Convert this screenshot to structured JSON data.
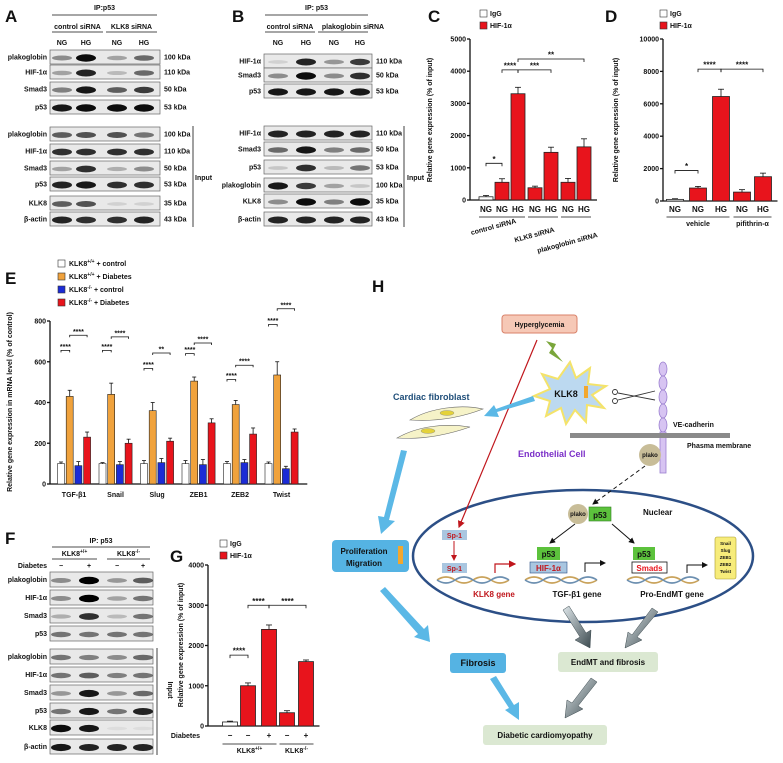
{
  "panels": {
    "A": {
      "label": "A",
      "ip_label": "IP:p53",
      "groups": [
        "control siRNA",
        "KLK8 siRNA"
      ],
      "conditions": [
        "NG",
        "HG",
        "NG",
        "HG"
      ],
      "input_label": "Input",
      "ip_blots": [
        {
          "name": "plakoglobin",
          "kda": "100 kDa",
          "bands": [
            0.4,
            0.95,
            0.3,
            0.55
          ]
        },
        {
          "name": "HIF-1α",
          "kda": "110 kDa",
          "bands": [
            0.3,
            0.85,
            0.2,
            0.55
          ]
        },
        {
          "name": "Smad3",
          "kda": "50 kDa",
          "bands": [
            0.45,
            0.9,
            0.6,
            0.75
          ]
        },
        {
          "name": "p53",
          "kda": "53 kDa",
          "bands": [
            0.9,
            0.95,
            0.95,
            0.95
          ]
        }
      ],
      "input_blots": [
        {
          "name": "plakoglobin",
          "kda": "100 kDa",
          "bands": [
            0.6,
            0.65,
            0.65,
            0.5
          ]
        },
        {
          "name": "HIF-1α",
          "kda": "110 kDa",
          "bands": [
            0.8,
            0.8,
            0.8,
            0.8
          ]
        },
        {
          "name": "Smad3",
          "kda": "50 kDa",
          "bands": [
            0.3,
            0.8,
            0.25,
            0.4
          ]
        },
        {
          "name": "p53",
          "kda": "53 kDa",
          "bands": [
            0.85,
            0.9,
            0.8,
            0.8
          ]
        },
        {
          "name": "KLK8",
          "kda": "35 kDa",
          "bands": [
            0.6,
            0.65,
            0.1,
            0.1
          ]
        },
        {
          "name": "β-actin",
          "kda": "43 kDa",
          "bands": [
            0.85,
            0.8,
            0.8,
            0.85
          ]
        }
      ]
    },
    "B": {
      "label": "B",
      "ip_label": "IP: p53",
      "groups": [
        "control siRNA",
        "plakoglobin siRNA"
      ],
      "conditions": [
        "NG",
        "HG",
        "NG",
        "HG"
      ],
      "input_label": "Input",
      "ip_blots": [
        {
          "name": "HIF-1α",
          "kda": "110 kDa",
          "bands": [
            0.1,
            0.85,
            0.35,
            0.75
          ]
        },
        {
          "name": "Smad3",
          "kda": "50 kDa",
          "bands": [
            0.4,
            0.95,
            0.4,
            0.8
          ]
        },
        {
          "name": "p53",
          "kda": "53 kDa",
          "bands": [
            0.9,
            0.9,
            0.9,
            0.9
          ]
        }
      ],
      "input_blots": [
        {
          "name": "HIF-1α",
          "kda": "110 kDa",
          "bands": [
            0.85,
            0.85,
            0.85,
            0.85
          ]
        },
        {
          "name": "Smad3",
          "kda": "50 kDa",
          "bands": [
            0.55,
            0.9,
            0.45,
            0.55
          ]
        },
        {
          "name": "p53",
          "kda": "53 kDa",
          "bands": [
            0.15,
            0.8,
            0.2,
            0.5
          ]
        },
        {
          "name": "plakoglobin",
          "kda": "100 kDa",
          "bands": [
            0.9,
            0.75,
            0.3,
            0.15
          ]
        },
        {
          "name": "KLK8",
          "kda": "35 kDa",
          "bands": [
            0.4,
            0.95,
            0.45,
            0.95
          ]
        },
        {
          "name": "β-actin",
          "kda": "43 kDa",
          "bands": [
            0.85,
            0.85,
            0.85,
            0.85
          ]
        }
      ]
    },
    "F": {
      "label": "F",
      "ip_label": "IP: p53",
      "groups": [
        {
          "base": "KLK8",
          "sup": "+/+"
        },
        {
          "base": "KLK8",
          "sup": "-/-"
        }
      ],
      "condition_label": "Diabetes",
      "conditions": [
        "−",
        "+",
        "−",
        "+"
      ],
      "input_label": "Input",
      "ip_blots": [
        {
          "name": "plakoglobin",
          "bands": [
            0.4,
            1.0,
            0.35,
            0.6
          ]
        },
        {
          "name": "HIF-1α",
          "bands": [
            0.4,
            1.0,
            0.3,
            0.5
          ]
        },
        {
          "name": "Smad3",
          "bands": [
            0.25,
            0.8,
            0.2,
            0.5
          ]
        },
        {
          "name": "p53",
          "bands": [
            0.5,
            0.5,
            0.5,
            0.5
          ]
        }
      ],
      "input_blots": [
        {
          "name": "plakoglobin",
          "bands": [
            0.5,
            0.45,
            0.4,
            0.55
          ]
        },
        {
          "name": "HIF-1α",
          "bands": [
            0.5,
            0.6,
            0.45,
            0.5
          ]
        },
        {
          "name": "Smad3",
          "bands": [
            0.35,
            0.9,
            0.35,
            0.55
          ]
        },
        {
          "name": "p53",
          "bands": [
            0.5,
            0.9,
            0.5,
            0.85
          ]
        },
        {
          "name": "KLK8",
          "bands": [
            0.95,
            0.9,
            0.05,
            0.05
          ]
        },
        {
          "name": "β-actin",
          "bands": [
            0.9,
            0.85,
            0.85,
            0.85
          ]
        }
      ]
    }
  },
  "chart_data": [
    {
      "panel": "C",
      "type": "bar",
      "ylabel": "Relative gene expression  (% of input)",
      "ylim": [
        0,
        5000
      ],
      "yticks": [
        0,
        1000,
        2000,
        3000,
        4000,
        5000
      ],
      "legend": [
        {
          "name": "IgG",
          "color": "#ffffff"
        },
        {
          "name": "HIF-1α",
          "color": "#e8141c"
        }
      ],
      "legend_position": "top-left",
      "categories": [
        "NG",
        "NG",
        "HG",
        "NG",
        "HG",
        "NG",
        "HG"
      ],
      "series_index": [
        0,
        1,
        1,
        1,
        1,
        1,
        1
      ],
      "values": [
        100,
        550,
        3300,
        380,
        1480,
        550,
        1650
      ],
      "errors": [
        40,
        110,
        200,
        50,
        160,
        120,
        250
      ],
      "groups": [
        {
          "label": "control siRNA",
          "from": 0,
          "to": 2
        },
        {
          "label": "KLK8 siRNA",
          "from": 3,
          "to": 4
        },
        {
          "label": "plakoglobin siRNA",
          "from": 5,
          "to": 6
        }
      ],
      "significance": [
        {
          "from": 0,
          "to": 1,
          "y": 1140,
          "label": "*"
        },
        {
          "from": 1,
          "to": 2,
          "y": 4040,
          "label": "****"
        },
        {
          "from": 2,
          "to": 4,
          "y": 4040,
          "label": "***"
        },
        {
          "from": 2,
          "to": 6,
          "y": 4380,
          "label": "**"
        }
      ]
    },
    {
      "panel": "D",
      "type": "bar",
      "ylabel": "Relative gene expression  (% of input)",
      "ylim": [
        0,
        10000
      ],
      "yticks": [
        0,
        2000,
        4000,
        6000,
        8000,
        10000
      ],
      "legend": [
        {
          "name": "IgG",
          "color": "#ffffff"
        },
        {
          "name": "HIF-1α",
          "color": "#e8141c"
        }
      ],
      "legend_position": "top-left",
      "categories": [
        "NG",
        "NG",
        "HG",
        "NG",
        "HG"
      ],
      "series_index": [
        0,
        1,
        1,
        1,
        1
      ],
      "values": [
        100,
        800,
        6450,
        550,
        1500
      ],
      "errors": [
        40,
        100,
        450,
        150,
        220
      ],
      "groups": [
        {
          "label": "vehicle",
          "from": 0,
          "to": 2
        },
        {
          "label": "pifithrin-α",
          "from": 3,
          "to": 4
        }
      ],
      "significance": [
        {
          "from": 0,
          "to": 1,
          "y": 1880,
          "label": "*"
        },
        {
          "from": 1,
          "to": 2,
          "y": 8140,
          "label": "****"
        },
        {
          "from": 2,
          "to": 4,
          "y": 8140,
          "label": "****"
        }
      ]
    },
    {
      "panel": "E",
      "type": "bar",
      "ylabel": "Relative gene expression in mRNA level (% of control)",
      "ylim": [
        0,
        800
      ],
      "yticks": [
        0,
        200,
        400,
        600,
        800
      ],
      "legend_position": "top-left",
      "categories": [
        "TGF-β1",
        "Snail",
        "Slug",
        "ZEB1",
        "ZEB2",
        "Twist"
      ],
      "series": [
        {
          "name": "KLK8 +/+ + control",
          "base": "KLK8",
          "sup": "+/+",
          "suffix": " + control",
          "color": "#ffffff",
          "values": [
            100,
            100,
            100,
            100,
            100,
            100
          ],
          "errors": [
            8,
            5,
            15,
            15,
            10,
            8
          ]
        },
        {
          "name": "KLK8 +/+ + Diabetes",
          "base": "KLK8",
          "sup": "+/+",
          "suffix": " + Diabetes",
          "color": "#f0a23c",
          "values": [
            430,
            440,
            360,
            505,
            390,
            535
          ],
          "errors": [
            30,
            55,
            40,
            20,
            20,
            65
          ]
        },
        {
          "name": "KLK8 -/- + control",
          "base": "KLK8",
          "sup": "-/-",
          "suffix": " + control",
          "color": "#1b2bd6",
          "values": [
            90,
            95,
            105,
            95,
            105,
            75
          ],
          "errors": [
            20,
            15,
            20,
            25,
            15,
            12
          ]
        },
        {
          "name": "KLK8 -/- + Diabetes",
          "base": "KLK8",
          "sup": "-/-",
          "suffix": " + Diabetes",
          "color": "#e8141c",
          "values": [
            230,
            200,
            210,
            300,
            245,
            255
          ],
          "errors": [
            25,
            20,
            15,
            20,
            30,
            15
          ]
        }
      ],
      "significance": [
        {
          "category": 0,
          "from": 0,
          "to": 1,
          "y": 656,
          "label": "****"
        },
        {
          "category": 0,
          "from": 1,
          "to": 3,
          "y": 730,
          "label": "****"
        },
        {
          "category": 1,
          "from": 0,
          "to": 1,
          "y": 656,
          "label": "****"
        },
        {
          "category": 1,
          "from": 1,
          "to": 3,
          "y": 722,
          "label": "****"
        },
        {
          "category": 2,
          "from": 0,
          "to": 1,
          "y": 567,
          "label": "****"
        },
        {
          "category": 2,
          "from": 1,
          "to": 3,
          "y": 643,
          "label": "**"
        },
        {
          "category": 3,
          "from": 0,
          "to": 1,
          "y": 640,
          "label": "****"
        },
        {
          "category": 3,
          "from": 1,
          "to": 3,
          "y": 692,
          "label": "****"
        },
        {
          "category": 4,
          "from": 0,
          "to": 1,
          "y": 513,
          "label": "****"
        },
        {
          "category": 4,
          "from": 1,
          "to": 3,
          "y": 583,
          "label": "****"
        },
        {
          "category": 5,
          "from": 0,
          "to": 1,
          "y": 783,
          "label": "****"
        },
        {
          "category": 5,
          "from": 1,
          "to": 3,
          "y": 860,
          "label": "****"
        }
      ]
    },
    {
      "panel": "G",
      "type": "bar",
      "ylabel": "Relative gene expression  (% of input)",
      "ylim": [
        0,
        4000
      ],
      "yticks": [
        0,
        1000,
        2000,
        3000,
        4000
      ],
      "legend": [
        {
          "name": "IgG",
          "color": "#ffffff"
        },
        {
          "name": "HIF-1α",
          "color": "#e8141c"
        }
      ],
      "legend_position": "top-left",
      "condition_label": "Diabetes",
      "categories": [
        "−",
        "−",
        "+",
        "−",
        "+"
      ],
      "series_index": [
        0,
        1,
        1,
        1,
        1
      ],
      "values": [
        100,
        1000,
        2400,
        330,
        1600
      ],
      "errors": [
        20,
        70,
        110,
        50,
        40
      ],
      "groups": [
        {
          "label": "KLK8",
          "sup": "+/+",
          "from": 0,
          "to": 2
        },
        {
          "label": "KLK8",
          "sup": "-/-",
          "from": 3,
          "to": 4
        }
      ],
      "significance": [
        {
          "from": 0,
          "to": 1,
          "y": 1760,
          "label": "****"
        },
        {
          "from": 1,
          "to": 2,
          "y": 3000,
          "label": "****"
        },
        {
          "from": 2,
          "to": 4,
          "y": 3000,
          "label": "****"
        }
      ]
    }
  ],
  "diagram": {
    "label": "H",
    "hyperglycemia": "Hyperglycemia",
    "klk8": "KLK8",
    "ve_cadherin": "VE-cadherin",
    "plasma_membrane": "Phasma membrane",
    "endothelial_cell": "Endothelial Cell",
    "plako": "plako",
    "p53": "p53",
    "nuclear": "Nuclear",
    "sp1": "Sp-1",
    "klk8_gene": "KLK8 gene",
    "hif1a": "HIF-1α",
    "tgfb1_gene": "TGF-β1 gene",
    "smads": "Smads",
    "pro_endmt_gene": "Pro-EndMT gene",
    "endmt_genes": [
      "Snail",
      "Slug",
      "ZEB1",
      "ZEB2",
      "Twist"
    ],
    "cardiac_fibroblast": "Cardiac fibroblast",
    "proliferation": "Proliferation",
    "migration": "Migration",
    "fibrosis": "Fibrosis",
    "endmt_fibrosis": "EndMT and fibrosis",
    "diabetic_cardiomyopathy": "Diabetic cardiomyopathy",
    "colors": {
      "blue_arrow": "#5bb8e6",
      "red_path": "#c0161c",
      "p53_box": "#5cc23c",
      "nucleus": "#2c4f86",
      "plako": "#c8bd98",
      "box_green": "#dbe8d2",
      "box_blue": "#55b3e3",
      "hyper_box": "#f6c8b6",
      "endothelial_text": "#7b2fc8",
      "fibroblast_text": "#1f4e79"
    }
  },
  "chart_labels": {
    "C": "C",
    "D": "D",
    "E": "E",
    "G": "G"
  }
}
